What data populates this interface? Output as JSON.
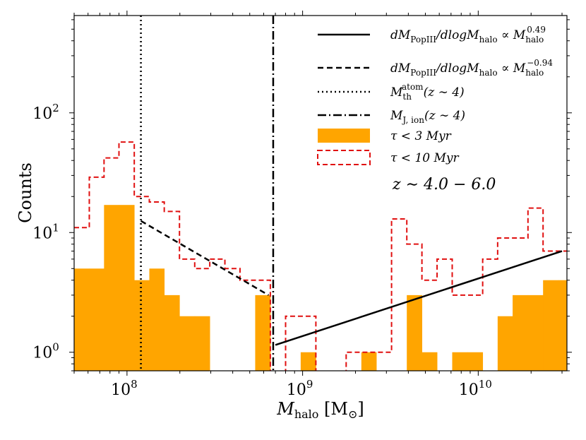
{
  "chart_data": {
    "type": "bar",
    "title": "",
    "xlabel": "M_halo [M⊙]",
    "ylabel": "Counts",
    "x_scale": "log",
    "y_scale": "log",
    "xlim": [
      50000000,
      32000000000
    ],
    "ylim": [
      0.7,
      650
    ],
    "grid": false,
    "legend_position": "top-right",
    "x_ticks": [
      {
        "value": 100000000,
        "base": "10",
        "exp": "8"
      },
      {
        "value": 1000000000,
        "base": "10",
        "exp": "9"
      },
      {
        "value": 10000000000,
        "base": "10",
        "exp": "10"
      }
    ],
    "y_ticks": [
      {
        "value": 1,
        "base": "10",
        "exp": "0"
      },
      {
        "value": 10,
        "base": "10",
        "exp": "1"
      },
      {
        "value": 100,
        "base": "10",
        "exp": "2"
      }
    ],
    "bin_edges": [
      50000000,
      61000000,
      74000000,
      90000000,
      110000000,
      134000000,
      163000000,
      199000000,
      243000000,
      296000000,
      361000000,
      440000000,
      537000000,
      655000000,
      800000000,
      975000000,
      1190000000,
      1450000000,
      1770000000,
      2160000000,
      2630000000,
      3210000000,
      3920000000,
      4780000000,
      5830000000,
      7110000000,
      8670000000,
      10600000000,
      12900000000,
      15700000000,
      19200000000,
      23400000000,
      28600000000,
      32000000000
    ],
    "series": [
      {
        "name": "τ < 3 Myr",
        "style": "filled",
        "color": "#ffa500",
        "values": [
          5,
          5,
          17,
          17,
          4,
          5,
          3,
          2,
          2,
          0,
          0,
          0,
          3,
          0,
          0,
          1,
          0,
          0,
          0,
          1,
          0,
          0,
          3,
          1,
          0,
          1,
          1,
          0,
          2,
          3,
          3,
          4,
          4
        ]
      },
      {
        "name": "τ < 10 Myr",
        "style": "step-dashed",
        "color": "#e01010",
        "values": [
          11,
          29,
          42,
          57,
          20,
          18,
          15,
          6,
          5,
          6,
          5,
          4,
          4,
          0,
          2,
          2,
          0,
          0,
          1,
          1,
          1,
          13,
          8,
          4,
          6,
          3,
          3,
          6,
          9,
          9,
          16,
          7,
          7
        ]
      }
    ],
    "fit_lines": [
      {
        "name": "solid",
        "style": "solid",
        "x": [
          700000000,
          30000000000
        ],
        "y": [
          1.15,
          7.0
        ]
      },
      {
        "name": "dashed",
        "style": "dashed",
        "x": [
          120000000,
          640000000
        ],
        "y": [
          12.5,
          3.0
        ]
      }
    ],
    "vertical_lines": [
      {
        "name": "M_th_atom",
        "style": "dotted",
        "x": 120000000
      },
      {
        "name": "M_J_ion",
        "style": "dashdot",
        "x": 680000000
      }
    ],
    "legend": [
      {
        "key": "solid_fit",
        "symbol": "solid",
        "label_main": "dM",
        "label_sub": "PopIII",
        "label_mid": "/dlogM",
        "label_sub2": "halo",
        "label_prop": " ∝ M",
        "label_sub3": "halo",
        "label_sup": "0.49"
      },
      {
        "key": "dashed_fit",
        "symbol": "dashed",
        "label_main": "dM",
        "label_sub": "PopIII",
        "label_mid": "/dlogM",
        "label_sub2": "halo",
        "label_prop": " ∝ M",
        "label_sub3": "halo",
        "label_sup": "−0.94"
      },
      {
        "key": "m_th",
        "symbol": "dotted",
        "label_main": "M",
        "label_sub": "th",
        "label_sup": "atom",
        "label_tail": "(z ∼ 4)"
      },
      {
        "key": "m_j",
        "symbol": "dashdot",
        "label_main": "M",
        "label_sub": "J, ion",
        "label_tail": "(z ∼ 4)"
      },
      {
        "key": "tau3",
        "symbol": "filled",
        "label": "τ < 3 Myr"
      },
      {
        "key": "tau10",
        "symbol": "step-dashed",
        "label": "τ < 10 Myr"
      }
    ],
    "annotation": "z ∼ 4.0 − 6.0",
    "xlabel_parts": {
      "main": "M",
      "sub": "halo",
      "unit": " [M",
      "unit_sub": "⊙",
      "unit_close": "]"
    }
  }
}
